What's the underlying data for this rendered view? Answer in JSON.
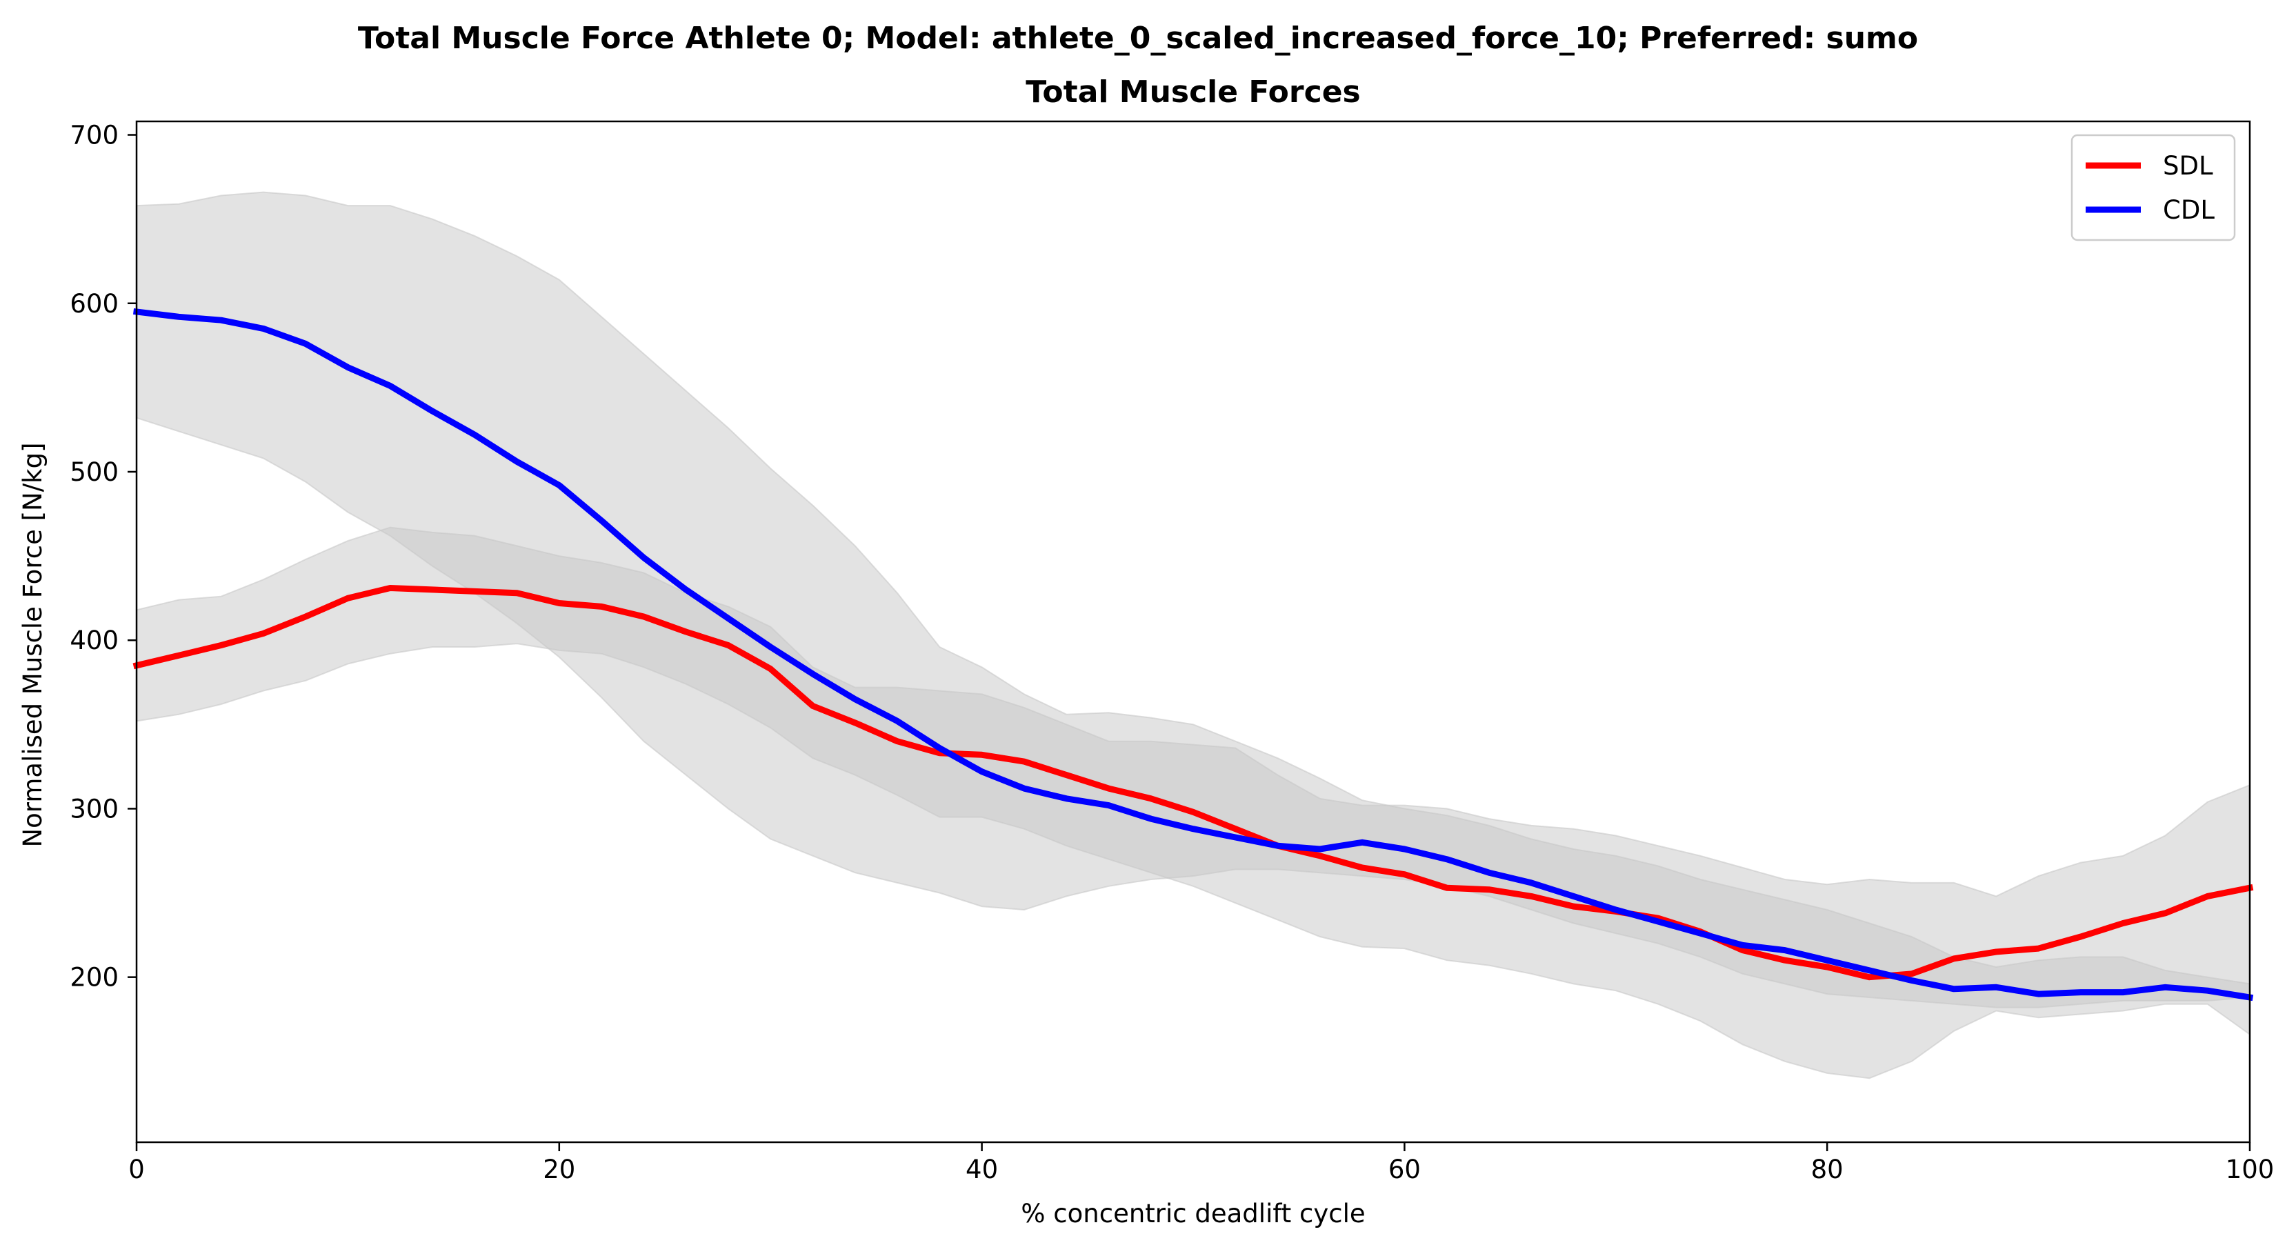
{
  "chart_data": {
    "type": "line",
    "suptitle": "Total Muscle Force Athlete 0; Model: athlete_0_scaled_increased_force_10; Preferred: sumo",
    "title": "Total Muscle Forces",
    "xlabel": "% concentric deadlift cycle",
    "ylabel": "Normalised Muscle Force [N/kg]",
    "xlim": [
      0,
      100
    ],
    "ylim": [
      102,
      708
    ],
    "xticks": [
      0,
      20,
      40,
      60,
      80,
      100
    ],
    "xtick_labels": [
      "0",
      "20",
      "40",
      "60",
      "80",
      "100"
    ],
    "yticks": [
      200,
      300,
      400,
      500,
      600,
      700
    ],
    "ytick_labels": [
      "200",
      "300",
      "400",
      "500",
      "600",
      "700"
    ],
    "grid": false,
    "legend_position": "top-right",
    "band_color": "#c8c8c8",
    "series": [
      {
        "name": "SDL",
        "color": "#ff0000",
        "x": [
          0,
          2,
          4,
          6,
          8,
          10,
          12,
          14,
          16,
          18,
          20,
          22,
          24,
          26,
          28,
          30,
          32,
          34,
          36,
          38,
          40,
          42,
          44,
          46,
          48,
          50,
          52,
          54,
          56,
          58,
          60,
          62,
          64,
          66,
          68,
          70,
          72,
          74,
          76,
          78,
          80,
          82,
          84,
          86,
          88,
          90,
          92,
          94,
          96,
          98,
          100
        ],
        "values": [
          385,
          391,
          397,
          404,
          414,
          425,
          431,
          430,
          429,
          428,
          422,
          420,
          414,
          405,
          397,
          383,
          361,
          351,
          340,
          333,
          332,
          328,
          320,
          312,
          306,
          298,
          288,
          278,
          272,
          265,
          261,
          253,
          252,
          248,
          242,
          239,
          235,
          227,
          216,
          210,
          206,
          200,
          202,
          211,
          215,
          217,
          224,
          232,
          238,
          248,
          253
        ],
        "band_upper": [
          418,
          424,
          426,
          436,
          448,
          459,
          467,
          464,
          462,
          456,
          450,
          446,
          440,
          428,
          420,
          408,
          384,
          372,
          372,
          370,
          368,
          360,
          350,
          340,
          340,
          338,
          336,
          320,
          306,
          302,
          302,
          300,
          294,
          290,
          288,
          284,
          278,
          272,
          265,
          258,
          255,
          258,
          256,
          256,
          248,
          260,
          268,
          272,
          284,
          304,
          314
        ],
        "band_lower": [
          352,
          356,
          362,
          370,
          376,
          386,
          392,
          396,
          396,
          398,
          394,
          392,
          384,
          374,
          362,
          348,
          330,
          320,
          308,
          295,
          295,
          288,
          278,
          270,
          262,
          254,
          244,
          234,
          224,
          218,
          217,
          210,
          207,
          202,
          196,
          192,
          184,
          174,
          160,
          150,
          143,
          140,
          150,
          168,
          180,
          176,
          178,
          180,
          184,
          184,
          166
        ]
      },
      {
        "name": "CDL",
        "color": "#0000ff",
        "x": [
          0,
          2,
          4,
          6,
          8,
          10,
          12,
          14,
          16,
          18,
          20,
          22,
          24,
          26,
          28,
          30,
          32,
          34,
          36,
          38,
          40,
          42,
          44,
          46,
          48,
          50,
          52,
          54,
          56,
          58,
          60,
          62,
          64,
          66,
          68,
          70,
          72,
          74,
          76,
          78,
          80,
          82,
          84,
          86,
          88,
          90,
          92,
          94,
          96,
          98,
          100
        ],
        "values": [
          595,
          592,
          590,
          585,
          576,
          562,
          551,
          536,
          522,
          506,
          492,
          471,
          449,
          430,
          413,
          396,
          380,
          365,
          352,
          336,
          322,
          312,
          306,
          302,
          294,
          288,
          283,
          278,
          276,
          280,
          276,
          270,
          262,
          256,
          248,
          240,
          233,
          226,
          219,
          216,
          210,
          204,
          198,
          193,
          194,
          190,
          191,
          191,
          194,
          192,
          188
        ],
        "band_upper": [
          658,
          659,
          664,
          666,
          664,
          658,
          658,
          650,
          640,
          628,
          614,
          592,
          570,
          548,
          526,
          502,
          480,
          456,
          428,
          396,
          384,
          368,
          356,
          357,
          354,
          350,
          340,
          330,
          318,
          305,
          300,
          296,
          290,
          282,
          276,
          272,
          266,
          258,
          252,
          246,
          240,
          232,
          224,
          212,
          206,
          210,
          212,
          212,
          204,
          200,
          196
        ],
        "band_lower": [
          532,
          524,
          516,
          508,
          494,
          476,
          462,
          444,
          428,
          410,
          390,
          366,
          340,
          320,
          300,
          282,
          272,
          262,
          256,
          250,
          242,
          240,
          248,
          254,
          258,
          260,
          264,
          264,
          262,
          260,
          258,
          254,
          248,
          240,
          232,
          226,
          220,
          212,
          202,
          196,
          190,
          188,
          186,
          184,
          182,
          182,
          184,
          186,
          186,
          186,
          188
        ]
      }
    ]
  }
}
